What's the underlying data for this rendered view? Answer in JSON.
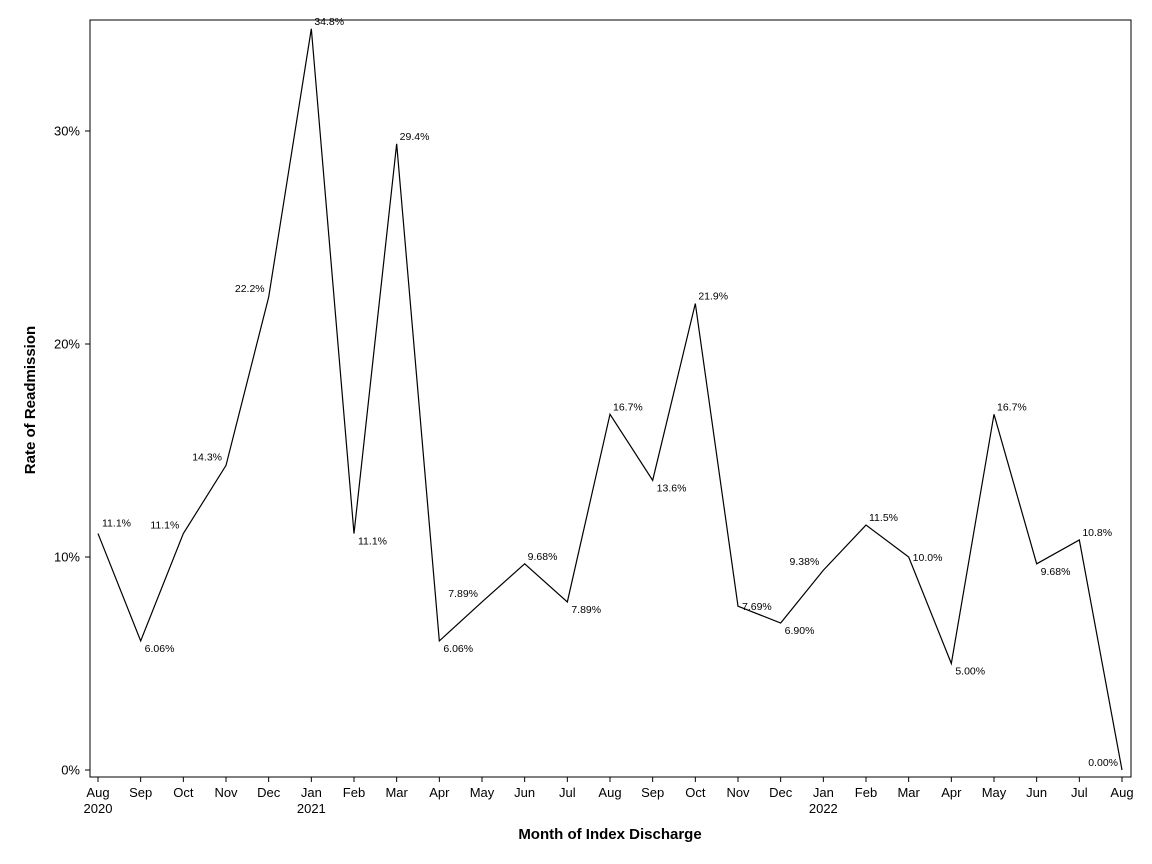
{
  "chart_data": {
    "type": "line",
    "title": "",
    "xlabel": "Month of Index Discharge",
    "ylabel": "Rate of Readmission",
    "ylim": [
      0,
      35.5
    ],
    "yticks": [
      0,
      10,
      20,
      30
    ],
    "ytick_labels": [
      "0%",
      "10%",
      "20%",
      "30%"
    ],
    "grid": false,
    "legend": "none",
    "x": [
      "Aug 2020",
      "Sep 2020",
      "Oct 2020",
      "Nov 2020",
      "Dec 2020",
      "Jan 2021",
      "Feb 2021",
      "Mar 2021",
      "Apr 2021",
      "May 2021",
      "Jun 2021",
      "Jul 2021",
      "Aug 2021",
      "Sep 2021",
      "Oct 2021",
      "Nov 2021",
      "Dec 2021",
      "Jan 2022",
      "Feb 2022",
      "Mar 2022",
      "Apr 2022",
      "May 2022",
      "Jun 2022",
      "Jul 2022",
      "Aug 2022"
    ],
    "x_tick_month": [
      "Aug",
      "Sep",
      "Oct",
      "Nov",
      "Dec",
      "Jan",
      "Feb",
      "Mar",
      "Apr",
      "May",
      "Jun",
      "Jul",
      "Aug",
      "Sep",
      "Oct",
      "Nov",
      "Dec",
      "Jan",
      "Feb",
      "Mar",
      "Apr",
      "May",
      "Jun",
      "Jul",
      "Aug"
    ],
    "x_tick_year": [
      "2020",
      "",
      "",
      "",
      "",
      "2021",
      "",
      "",
      "",
      "",
      "",
      "",
      "",
      "",
      "",
      "",
      "",
      "2022",
      "",
      "",
      "",
      "",
      "",
      "",
      ""
    ],
    "series": [
      {
        "values": [
          11.1,
          6.06,
          11.1,
          14.3,
          22.2,
          34.8,
          11.1,
          29.4,
          6.06,
          7.89,
          9.68,
          7.89,
          16.7,
          13.6,
          21.9,
          7.69,
          6.9,
          9.38,
          11.5,
          10.0,
          5.0,
          16.7,
          9.68,
          10.8,
          0.0
        ],
        "labels": [
          "11.1%",
          "6.06%",
          "11.1%",
          "14.3%",
          "22.2%",
          "34.8%",
          "11.1%",
          "29.4%",
          "6.06%",
          "7.89%",
          "9.68%",
          "7.89%",
          "16.7%",
          "13.6%",
          "21.9%",
          "7.69%",
          "6.90%",
          "9.38%",
          "11.5%",
          "10.0%",
          "5.00%",
          "16.7%",
          "9.68%",
          "10.8%",
          "0.00%"
        ]
      }
    ]
  }
}
